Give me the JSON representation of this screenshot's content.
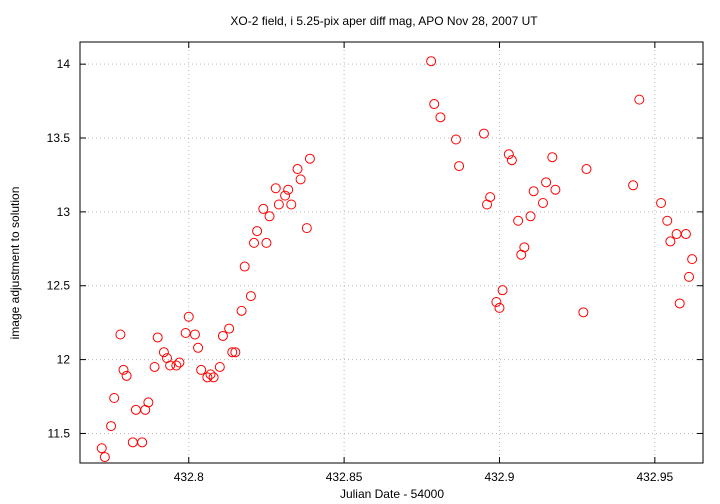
{
  "chart_data": {
    "type": "scatter",
    "title": "XO-2 field, i 5.25-pix aper diff mag, APO Nov 28, 2007 UT",
    "xlabel": "Julian Date - 54000",
    "ylabel": "image adjustment to solution",
    "xlim": [
      432.765,
      432.9655
    ],
    "ylim": [
      11.3,
      14.15
    ],
    "xticks": [
      432.8,
      432.85,
      432.9,
      432.95
    ],
    "xtick_labels": [
      "432.8",
      "432.85",
      "432.9",
      "432.95"
    ],
    "yticks": [
      11.5,
      12,
      12.5,
      13,
      13.5,
      14
    ],
    "ytick_labels": [
      "11.5",
      "12",
      "12.5",
      "13",
      "13.5",
      "14"
    ],
    "grid": true,
    "marker": "open-circle",
    "marker_color": "#ff0000",
    "series": [
      {
        "points": [
          [
            432.772,
            11.4
          ],
          [
            432.773,
            11.34
          ],
          [
            432.775,
            11.55
          ],
          [
            432.776,
            11.74
          ],
          [
            432.778,
            12.17
          ],
          [
            432.779,
            11.93
          ],
          [
            432.78,
            11.89
          ],
          [
            432.782,
            11.44
          ],
          [
            432.783,
            11.66
          ],
          [
            432.785,
            11.44
          ],
          [
            432.786,
            11.66
          ],
          [
            432.787,
            11.71
          ],
          [
            432.789,
            11.95
          ],
          [
            432.79,
            12.15
          ],
          [
            432.792,
            12.05
          ],
          [
            432.793,
            12.01
          ],
          [
            432.794,
            11.96
          ],
          [
            432.796,
            11.96
          ],
          [
            432.797,
            11.98
          ],
          [
            432.799,
            12.18
          ],
          [
            432.8,
            12.29
          ],
          [
            432.802,
            12.17
          ],
          [
            432.803,
            12.08
          ],
          [
            432.804,
            11.93
          ],
          [
            432.806,
            11.88
          ],
          [
            432.807,
            11.9
          ],
          [
            432.808,
            11.88
          ],
          [
            432.81,
            11.95
          ],
          [
            432.811,
            12.16
          ],
          [
            432.813,
            12.21
          ],
          [
            432.814,
            12.05
          ],
          [
            432.815,
            12.05
          ],
          [
            432.817,
            12.33
          ],
          [
            432.818,
            12.63
          ],
          [
            432.82,
            12.43
          ],
          [
            432.821,
            12.79
          ],
          [
            432.822,
            12.87
          ],
          [
            432.824,
            13.02
          ],
          [
            432.825,
            12.79
          ],
          [
            432.826,
            12.97
          ],
          [
            432.828,
            13.16
          ],
          [
            432.829,
            13.05
          ],
          [
            432.831,
            13.11
          ],
          [
            432.832,
            13.15
          ],
          [
            432.833,
            13.05
          ],
          [
            432.835,
            13.29
          ],
          [
            432.836,
            13.22
          ],
          [
            432.838,
            12.89
          ],
          [
            432.839,
            13.36
          ],
          [
            432.878,
            14.02
          ],
          [
            432.879,
            13.73
          ],
          [
            432.881,
            13.64
          ],
          [
            432.886,
            13.49
          ],
          [
            432.887,
            13.31
          ],
          [
            432.895,
            13.53
          ],
          [
            432.896,
            13.05
          ],
          [
            432.897,
            13.1
          ],
          [
            432.899,
            12.39
          ],
          [
            432.9,
            12.35
          ],
          [
            432.901,
            12.47
          ],
          [
            432.903,
            13.39
          ],
          [
            432.904,
            13.35
          ],
          [
            432.906,
            12.94
          ],
          [
            432.907,
            12.71
          ],
          [
            432.908,
            12.76
          ],
          [
            432.91,
            12.97
          ],
          [
            432.911,
            13.14
          ],
          [
            432.914,
            13.06
          ],
          [
            432.915,
            13.2
          ],
          [
            432.917,
            13.37
          ],
          [
            432.918,
            13.15
          ],
          [
            432.927,
            12.32
          ],
          [
            432.928,
            13.29
          ],
          [
            432.943,
            13.18
          ],
          [
            432.945,
            13.76
          ],
          [
            432.952,
            13.06
          ],
          [
            432.954,
            12.94
          ],
          [
            432.955,
            12.8
          ],
          [
            432.957,
            12.85
          ],
          [
            432.958,
            12.38
          ],
          [
            432.96,
            12.85
          ],
          [
            432.961,
            12.56
          ],
          [
            432.962,
            12.68
          ]
        ]
      }
    ]
  }
}
